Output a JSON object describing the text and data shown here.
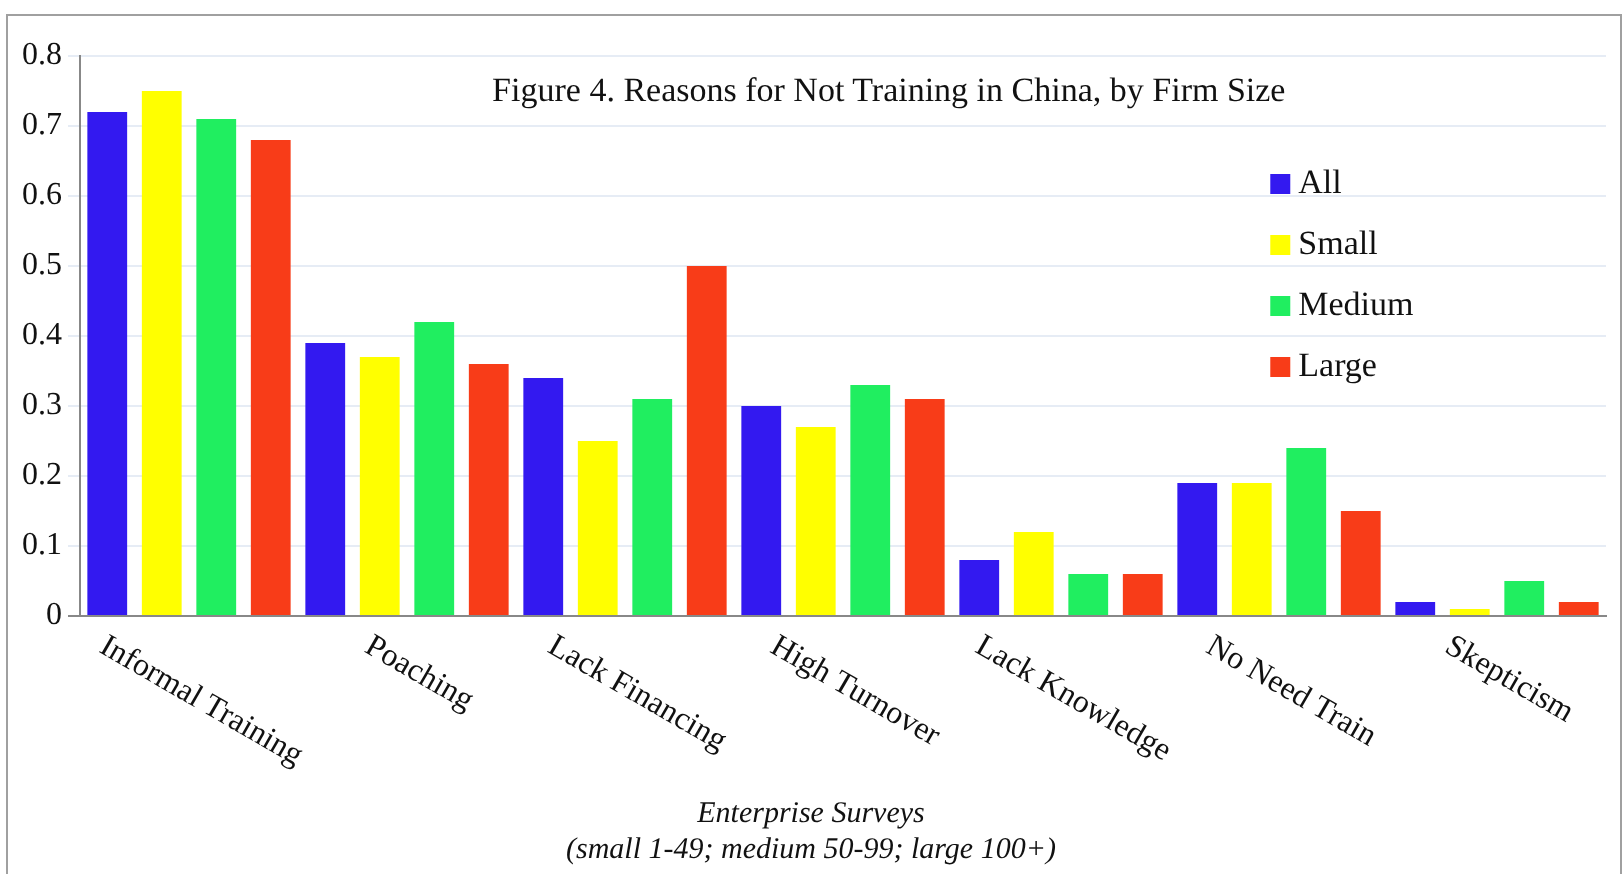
{
  "chart_data": {
    "type": "bar",
    "title": "Figure 4. Reasons for Not Training in China, by Firm Size",
    "categories": [
      "Informal Training",
      "Poaching",
      "Lack Financing",
      "High Turnover",
      "Lack Knowledge",
      "No Need Train",
      "Skepticism"
    ],
    "series": [
      {
        "name": "All",
        "color": "#3319f0",
        "values": [
          0.72,
          0.39,
          0.34,
          0.3,
          0.08,
          0.19,
          0.02
        ]
      },
      {
        "name": "Small",
        "color": "#ffff00",
        "values": [
          0.75,
          0.37,
          0.25,
          0.27,
          0.12,
          0.19,
          0.01
        ]
      },
      {
        "name": "Medium",
        "color": "#20ee60",
        "values": [
          0.71,
          0.42,
          0.31,
          0.33,
          0.06,
          0.24,
          0.05
        ]
      },
      {
        "name": "Large",
        "color": "#f83c18",
        "values": [
          0.68,
          0.36,
          0.5,
          0.31,
          0.06,
          0.15,
          0.02
        ]
      }
    ],
    "ylim": [
      0,
      0.8
    ],
    "yticks": [
      0,
      0.1,
      0.2,
      0.3,
      0.4,
      0.5,
      0.6,
      0.7,
      0.8
    ],
    "grid": "y",
    "legend": "top right",
    "annotations": [
      "Enterprise Surveys",
      "(small 1-49; medium 50-99; large 100+)"
    ]
  }
}
